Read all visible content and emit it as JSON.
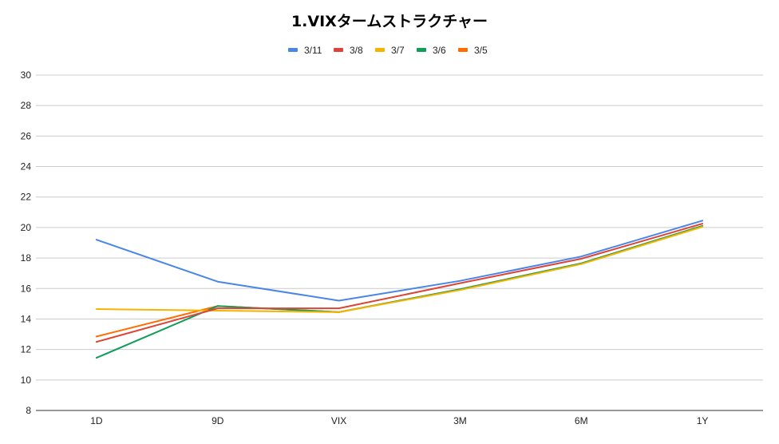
{
  "chart_data": {
    "type": "line",
    "title": "1.VIXタームストラクチャー",
    "categories": [
      "1D",
      "9D",
      "VIX",
      "3M",
      "6M",
      "1Y"
    ],
    "yticks": [
      "8",
      "10",
      "12",
      "14",
      "16",
      "18",
      "20",
      "22",
      "24",
      "26",
      "28",
      "30"
    ],
    "ylim": [
      8,
      30
    ],
    "grid": true,
    "legend_position": "top",
    "series": [
      {
        "name": "3/11",
        "color": "#4a86e8",
        "values": [
          19.2,
          16.45,
          15.2,
          16.5,
          18.1,
          20.45
        ]
      },
      {
        "name": "3/8",
        "color": "#db4437",
        "values": [
          12.5,
          14.7,
          14.7,
          16.35,
          17.95,
          20.25
        ]
      },
      {
        "name": "3/7",
        "color": "#f4b400",
        "values": [
          14.65,
          14.55,
          14.45,
          15.9,
          17.6,
          20.05
        ]
      },
      {
        "name": "3/6",
        "color": "#0f9d58",
        "values": [
          11.45,
          14.85,
          14.45,
          15.95,
          17.65,
          20.1
        ]
      },
      {
        "name": "3/5",
        "color": "#ff6d01",
        "values": [
          12.85,
          14.85,
          14.45,
          15.95,
          17.65,
          20.1
        ]
      }
    ]
  }
}
